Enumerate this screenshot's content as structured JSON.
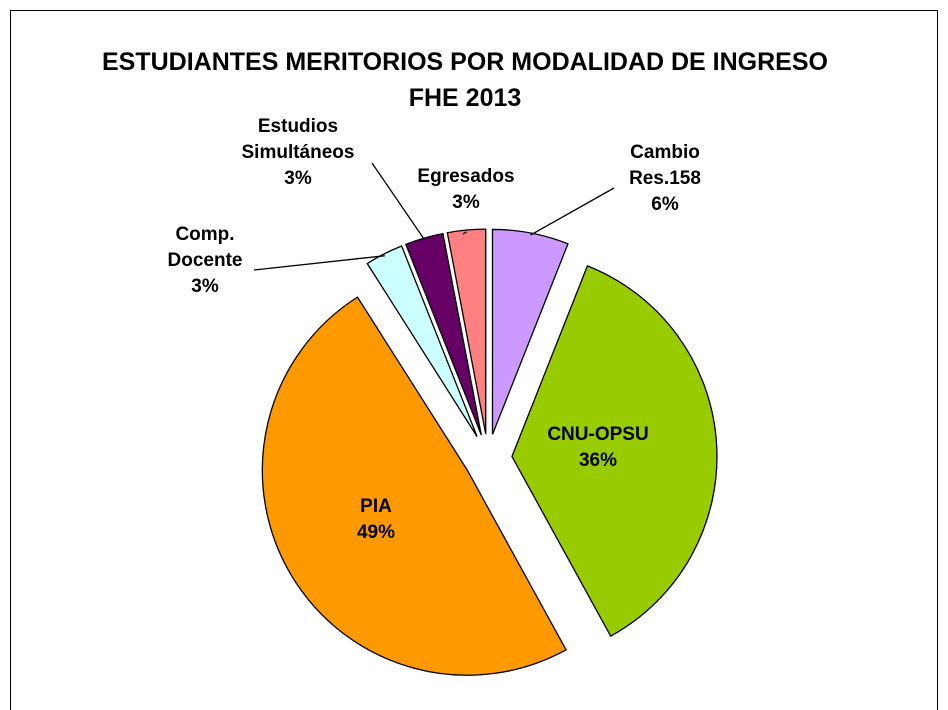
{
  "chart_data": {
    "type": "pie",
    "title": "ESTUDIANTES MERITORIOS POR MODALIDAD DE INGRESO FHE 2013",
    "categories": [
      "Cambio Res.158",
      "CNU-OPSU",
      "PIA",
      "Comp. Docente",
      "Estudios Simultáneos",
      "Egresados"
    ],
    "values": [
      6,
      36,
      49,
      3,
      3,
      3
    ],
    "value_labels": [
      "6%",
      "36%",
      "49%",
      "3%",
      "3%",
      "3%"
    ],
    "colors": [
      "#cc99ff",
      "#99cc00",
      "#ff9900",
      "#ccffff",
      "#660066",
      "#ff8080"
    ]
  }
}
